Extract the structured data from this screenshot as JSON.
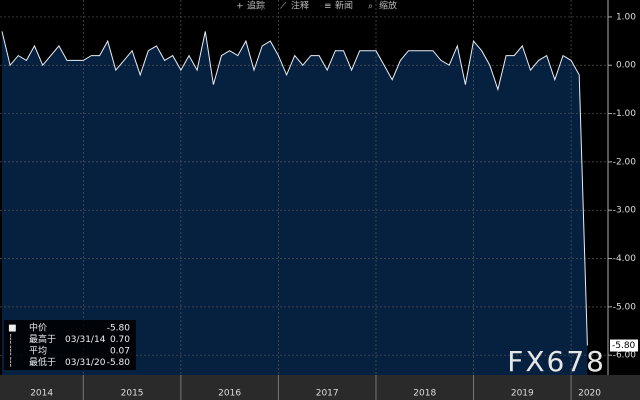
{
  "toolbar": [
    "追踪",
    "注释",
    "新闻",
    "缩放"
  ],
  "watermark": "FX678",
  "legend": [
    {
      "label": "中价",
      "value": "-5.80"
    },
    {
      "label": "最高于",
      "date": "03/31/14",
      "value": "0.70"
    },
    {
      "label": "平均",
      "value": "0.07"
    },
    {
      "label": "最低于",
      "date": "03/31/20",
      "value": "-5.80"
    }
  ],
  "chart_data": {
    "type": "area",
    "color": "#e8eef5",
    "fill": "#06203f",
    "grid": true,
    "values": [
      0.7,
      0.0,
      0.2,
      0.1,
      0.4,
      0.0,
      0.2,
      0.4,
      0.1,
      0.1,
      0.1,
      0.2,
      0.2,
      0.5,
      -0.1,
      0.1,
      0.3,
      -0.2,
      0.3,
      0.4,
      0.1,
      0.2,
      -0.1,
      0.2,
      -0.1,
      0.7,
      -0.4,
      0.2,
      0.3,
      0.2,
      0.5,
      -0.1,
      0.4,
      0.5,
      0.2,
      -0.2,
      0.2,
      0.0,
      0.2,
      0.2,
      -0.1,
      0.3,
      0.3,
      -0.1,
      0.3,
      0.3,
      0.3,
      0.0,
      -0.3,
      0.1,
      0.3,
      0.3,
      0.3,
      0.3,
      0.1,
      0.0,
      0.4,
      -0.4,
      0.5,
      0.3,
      0.0,
      -0.5,
      0.2,
      0.2,
      0.4,
      -0.1,
      0.1,
      0.2,
      -0.3,
      0.2,
      0.1,
      -0.2,
      -5.8
    ],
    "last_value_label": "-5.80",
    "years": [
      "2014",
      "2015",
      "2016",
      "2017",
      "2018",
      "2019",
      "2020"
    ],
    "ylim": [
      -6.41,
      1.35
    ],
    "yticks": [
      {
        "value": 1,
        "label": "1.00"
      },
      {
        "value": 0,
        "label": "0.00"
      },
      {
        "value": -1,
        "label": "-1.00"
      },
      {
        "value": -2,
        "label": "-2.00"
      },
      {
        "value": -3,
        "label": "-3.00"
      },
      {
        "value": -4,
        "label": "-4.00"
      },
      {
        "value": -5,
        "label": "-5.00"
      },
      {
        "value": -6,
        "label": "-6.00"
      }
    ]
  }
}
